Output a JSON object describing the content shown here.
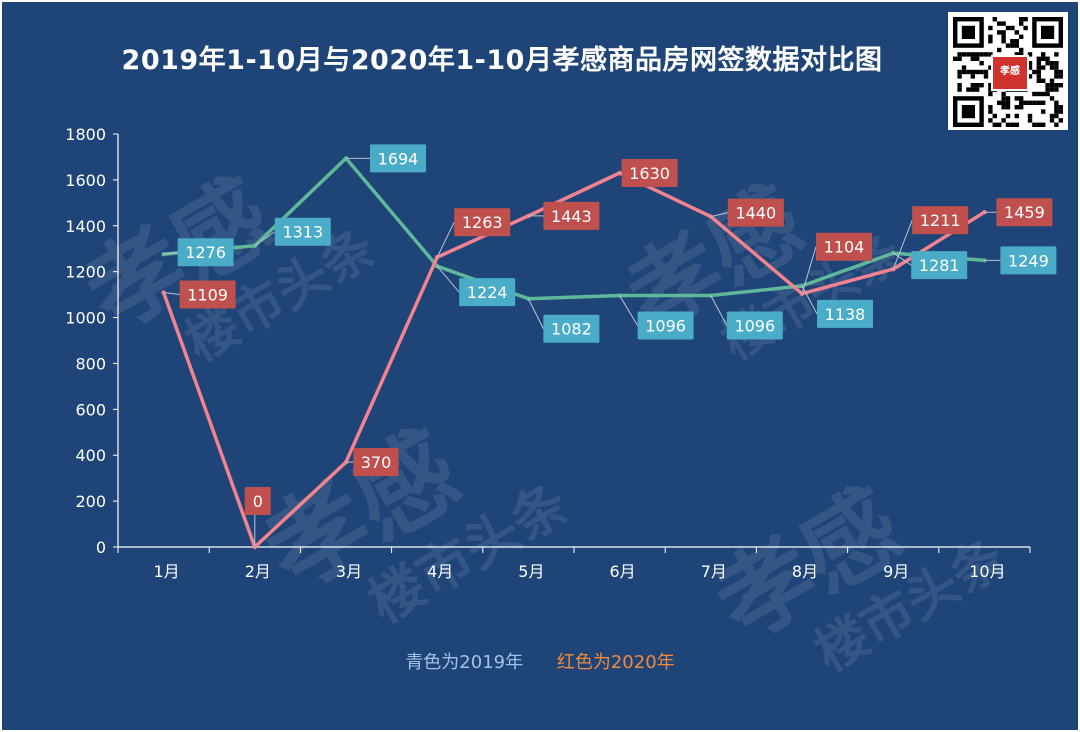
{
  "chart_data": {
    "type": "line",
    "title": "2019年1-10月与2020年1-10月孝感商品房网签数据对比图",
    "categories": [
      "1月",
      "2月",
      "3月",
      "4月",
      "5月",
      "6月",
      "7月",
      "8月",
      "9月",
      "10月"
    ],
    "ylim": [
      0,
      1800
    ],
    "yticks": [
      0,
      200,
      400,
      600,
      800,
      1000,
      1200,
      1400,
      1600,
      1800
    ],
    "series": [
      {
        "name": "2019",
        "color": "#5fb89a",
        "label_color": "#4aacc6",
        "values": [
          1276,
          1313,
          1694,
          1224,
          1082,
          1096,
          1096,
          1138,
          1281,
          1249
        ]
      },
      {
        "name": "2020",
        "color": "#f2838f",
        "label_color": "#c0504d",
        "values": [
          1109,
          0,
          370,
          1263,
          1443,
          1630,
          1440,
          1104,
          1211,
          1459
        ]
      }
    ],
    "legend": [
      "青色为2019年",
      "红色为2020年"
    ]
  },
  "qr": {
    "badge": "孝感",
    "badge_sub": "楼市头条"
  },
  "watermark": {
    "line1": "孝感",
    "line2": "楼市头条"
  },
  "colors": {
    "background": "#1f4477",
    "axis": "#ffffff",
    "legend_2019": "#9fc2e6",
    "legend_2020": "#ee8a3c"
  }
}
